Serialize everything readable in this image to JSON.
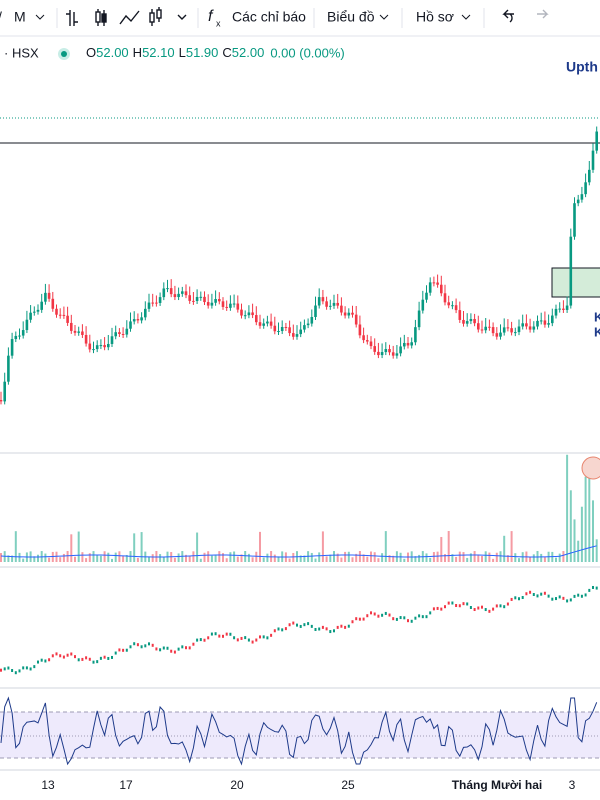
{
  "toolbar": {
    "interval": "M",
    "indicators": "Các chỉ báo",
    "chart": "Biểu đồ",
    "profile": "Hồ sơ"
  },
  "legend": {
    "exchange": "· HSX",
    "ohlc": [
      {
        "label": "O",
        "value": "52.00"
      },
      {
        "label": "H",
        "value": "52.10"
      },
      {
        "label": "L",
        "value": "51.90"
      },
      {
        "label": "C",
        "value": "52.00"
      }
    ],
    "change": "0.00 (0.00%)"
  },
  "annotations": [
    "Upth",
    "K",
    "K"
  ],
  "x_axis": [
    "13",
    "17",
    "20",
    "25",
    "Tháng Mười hai",
    "3"
  ]
}
